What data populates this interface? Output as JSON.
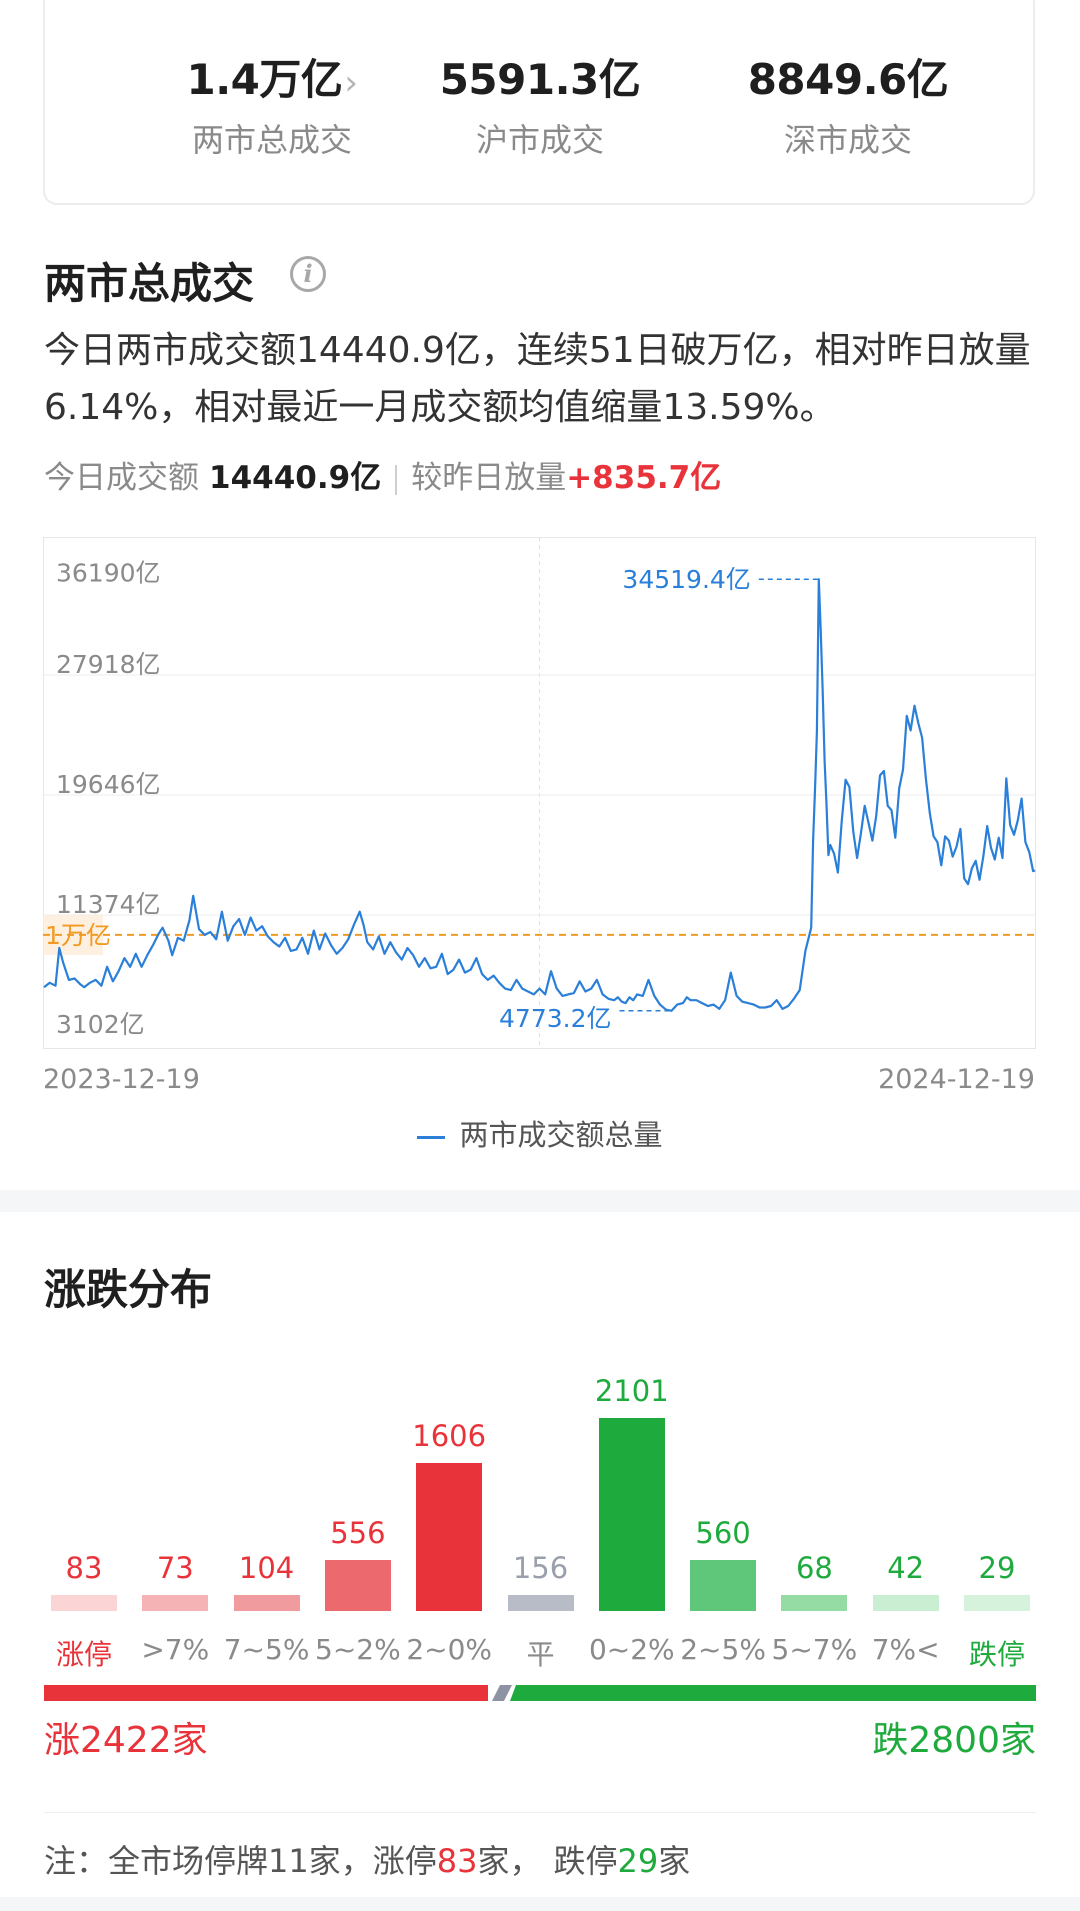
{
  "stats": [
    {
      "value": "1.4万亿",
      "label": "两市总成交",
      "chevron": "›"
    },
    {
      "value": "5591.3亿",
      "label": "沪市成交"
    },
    {
      "value": "8849.6亿",
      "label": "深市成交"
    }
  ],
  "turnover": {
    "title": "两市总成交",
    "summary": "今日两市成交额14440.9亿，连续51日破万亿，相对昨日放量6.14%，相对最近一月成交额均值缩量13.59%。",
    "today_label": "今日成交额",
    "today_value": "14440.9亿",
    "compare_label": "较昨日放量",
    "compare_value": "+835.7亿"
  },
  "chart_data": {
    "type": "line",
    "series": [
      {
        "name": "两市成交额总量",
        "color": "#2a7fd9"
      }
    ],
    "y_ticks": [
      "36190亿",
      "27918亿",
      "19646亿",
      "11374亿",
      "3102亿"
    ],
    "y_tick_values": [
      36190,
      27918,
      19646,
      11374,
      3102
    ],
    "ylim": [
      3102,
      36190
    ],
    "x_start": "2023-12-19",
    "x_end": "2024-12-19",
    "reference_line": {
      "label": "1万亿",
      "value": 10000,
      "color": "#f39a21"
    },
    "max_label": "34519.4亿",
    "max_value": 34519.4,
    "min_label": "4773.2亿",
    "min_value": 4773.2,
    "points": [
      [
        0,
        6400
      ],
      [
        3,
        6700
      ],
      [
        6,
        6500
      ],
      [
        8,
        9100
      ],
      [
        10,
        8100
      ],
      [
        13,
        6900
      ],
      [
        16,
        7000
      ],
      [
        19,
        6600
      ],
      [
        21,
        6400
      ],
      [
        24,
        6700
      ],
      [
        27,
        6900
      ],
      [
        30,
        6500
      ],
      [
        33,
        7800
      ],
      [
        36,
        6800
      ],
      [
        39,
        7500
      ],
      [
        42,
        8400
      ],
      [
        45,
        7800
      ],
      [
        48,
        8700
      ],
      [
        51,
        7800
      ],
      [
        54,
        8600
      ],
      [
        57,
        9300
      ],
      [
        60,
        10100
      ],
      [
        62,
        10500
      ],
      [
        65,
        9600
      ],
      [
        67,
        8600
      ],
      [
        70,
        9800
      ],
      [
        73,
        9600
      ],
      [
        76,
        11000
      ],
      [
        78,
        12700
      ],
      [
        81,
        10400
      ],
      [
        84,
        10000
      ],
      [
        87,
        10200
      ],
      [
        90,
        9700
      ],
      [
        93,
        11600
      ],
      [
        96,
        9600
      ],
      [
        99,
        10600
      ],
      [
        102,
        11100
      ],
      [
        105,
        10000
      ],
      [
        108,
        11200
      ],
      [
        111,
        10300
      ],
      [
        114,
        10600
      ],
      [
        117,
        9900
      ],
      [
        120,
        9500
      ],
      [
        123,
        9200
      ],
      [
        126,
        9800
      ],
      [
        129,
        8900
      ],
      [
        132,
        9000
      ],
      [
        135,
        9800
      ],
      [
        138,
        8700
      ],
      [
        141,
        10300
      ],
      [
        144,
        9000
      ],
      [
        147,
        10100
      ],
      [
        150,
        9300
      ],
      [
        153,
        8700
      ],
      [
        156,
        9100
      ],
      [
        159,
        9700
      ],
      [
        162,
        10700
      ],
      [
        165,
        11600
      ],
      [
        167,
        10700
      ],
      [
        169,
        9500
      ],
      [
        172,
        9000
      ],
      [
        175,
        9900
      ],
      [
        178,
        8700
      ],
      [
        181,
        9500
      ],
      [
        184,
        8800
      ],
      [
        187,
        8300
      ],
      [
        190,
        9100
      ],
      [
        193,
        8600
      ],
      [
        196,
        7800
      ],
      [
        199,
        8400
      ],
      [
        202,
        7700
      ],
      [
        205,
        7800
      ],
      [
        208,
        8700
      ],
      [
        211,
        7300
      ],
      [
        214,
        7600
      ],
      [
        217,
        8300
      ],
      [
        220,
        7400
      ],
      [
        223,
        7600
      ],
      [
        226,
        8400
      ],
      [
        229,
        7300
      ],
      [
        232,
        6900
      ],
      [
        235,
        7200
      ],
      [
        238,
        6700
      ],
      [
        241,
        6300
      ],
      [
        244,
        6200
      ],
      [
        247,
        6900
      ],
      [
        250,
        6300
      ],
      [
        253,
        6100
      ],
      [
        256,
        5900
      ],
      [
        259,
        6300
      ],
      [
        262,
        5900
      ],
      [
        265,
        7500
      ],
      [
        268,
        6300
      ],
      [
        271,
        5800
      ],
      [
        274,
        5900
      ],
      [
        277,
        6000
      ],
      [
        280,
        6800
      ],
      [
        283,
        6100
      ],
      [
        286,
        6300
      ],
      [
        289,
        6900
      ],
      [
        292,
        5900
      ],
      [
        295,
        5600
      ],
      [
        298,
        5500
      ],
      [
        300,
        5700
      ],
      [
        302,
        5400
      ],
      [
        304,
        5300
      ],
      [
        306,
        5700
      ],
      [
        308,
        5500
      ],
      [
        310,
        5900
      ],
      [
        313,
        5800
      ],
      [
        316,
        6900
      ],
      [
        319,
        5800
      ],
      [
        322,
        5200
      ],
      [
        325,
        4850
      ],
      [
        328,
        4773
      ],
      [
        331,
        5200
      ],
      [
        334,
        5300
      ],
      [
        336,
        5700
      ],
      [
        338,
        5500
      ],
      [
        341,
        5500
      ],
      [
        344,
        5300
      ],
      [
        347,
        5100
      ],
      [
        350,
        5200
      ],
      [
        353,
        4900
      ],
      [
        356,
        5500
      ],
      [
        359,
        7400
      ],
      [
        362,
        5800
      ],
      [
        365,
        5400
      ],
      [
        368,
        5300
      ],
      [
        371,
        5200
      ],
      [
        374,
        5000
      ],
      [
        377,
        5000
      ],
      [
        380,
        5100
      ],
      [
        383,
        5500
      ],
      [
        386,
        4900
      ],
      [
        389,
        5100
      ],
      [
        392,
        5600
      ],
      [
        395,
        6200
      ],
      [
        398,
        8900
      ],
      [
        401,
        10500
      ],
      [
        402,
        16500
      ],
      [
        403,
        20000
      ],
      [
        404,
        24000
      ],
      [
        405,
        34519
      ],
      [
        406,
        31000
      ],
      [
        407,
        27000
      ],
      [
        408,
        22000
      ],
      [
        409,
        19000
      ],
      [
        410,
        15500
      ],
      [
        411,
        16200
      ],
      [
        413,
        15600
      ],
      [
        415,
        14300
      ],
      [
        417,
        17900
      ],
      [
        419,
        20700
      ],
      [
        421,
        20200
      ],
      [
        423,
        17100
      ],
      [
        425,
        15300
      ],
      [
        427,
        17000
      ],
      [
        429,
        18900
      ],
      [
        431,
        17700
      ],
      [
        433,
        16500
      ],
      [
        435,
        18200
      ],
      [
        437,
        21000
      ],
      [
        439,
        21300
      ],
      [
        441,
        18900
      ],
      [
        443,
        18600
      ],
      [
        445,
        16700
      ],
      [
        447,
        20100
      ],
      [
        449,
        21400
      ],
      [
        451,
        25100
      ],
      [
        453,
        24100
      ],
      [
        455,
        25800
      ],
      [
        457,
        24600
      ],
      [
        459,
        23600
      ],
      [
        461,
        20700
      ],
      [
        463,
        18400
      ],
      [
        465,
        16800
      ],
      [
        467,
        16400
      ],
      [
        469,
        14800
      ],
      [
        471,
        16800
      ],
      [
        473,
        16500
      ],
      [
        475,
        15400
      ],
      [
        477,
        16100
      ],
      [
        479,
        17300
      ],
      [
        481,
        13900
      ],
      [
        483,
        13500
      ],
      [
        485,
        14600
      ],
      [
        487,
        15100
      ],
      [
        489,
        13800
      ],
      [
        491,
        15400
      ],
      [
        493,
        17500
      ],
      [
        495,
        16000
      ],
      [
        497,
        15200
      ],
      [
        499,
        16700
      ],
      [
        501,
        15300
      ],
      [
        503,
        20800
      ],
      [
        505,
        17600
      ],
      [
        507,
        16900
      ],
      [
        509,
        17900
      ],
      [
        511,
        19400
      ],
      [
        513,
        16400
      ],
      [
        515,
        15700
      ],
      [
        517,
        14400
      ],
      [
        518,
        14440
      ]
    ],
    "x_max": 518
  },
  "distribution": {
    "title": "涨跌分布",
    "buckets": [
      {
        "label": "涨停",
        "value": 83,
        "kind": "up-light",
        "label_color": "#e8333a"
      },
      {
        "label": ">7%",
        "value": 73,
        "kind": "up-light"
      },
      {
        "label": "7~5%",
        "value": 104,
        "kind": "up-mid"
      },
      {
        "label": "5~2%",
        "value": 556,
        "kind": "up-strong"
      },
      {
        "label": "2~0%",
        "value": 1606,
        "kind": "up-full"
      },
      {
        "label": "平",
        "value": 156,
        "kind": "flat"
      },
      {
        "label": "0~2%",
        "value": 2101,
        "kind": "down-full"
      },
      {
        "label": "2~5%",
        "value": 560,
        "kind": "down-strong"
      },
      {
        "label": "5~7%",
        "value": 68,
        "kind": "down-mid"
      },
      {
        "label": "7%<",
        "value": 42,
        "kind": "down-light"
      },
      {
        "label": "跌停",
        "value": 29,
        "kind": "down-light",
        "label_color": "#1faa3e"
      }
    ],
    "up_total_label": "涨2422家",
    "down_total_label": "跌2800家",
    "up_count": 2422,
    "down_count": 2800
  },
  "note": {
    "prefix": "注：全市场停牌11家，",
    "limit_up_label": "涨停",
    "limit_up_count": "83",
    "limit_up_unit": "家，",
    "limit_down_label": "跌停",
    "limit_down_count": "29",
    "limit_down_unit": "家"
  },
  "colors": {
    "up": "#e8333a",
    "down": "#1faa3e",
    "flat": "#b8bcc6",
    "line": "#2a7fd9",
    "reference": "#f39a21"
  }
}
